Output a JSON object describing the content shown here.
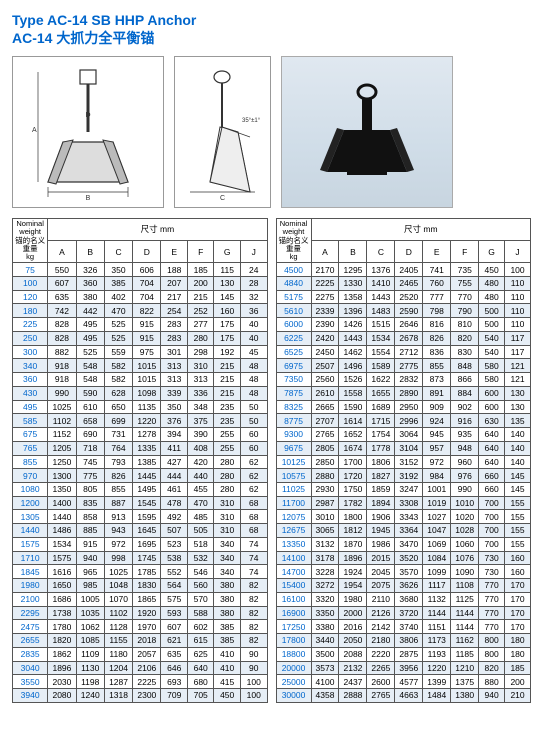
{
  "title_en": "Type AC-14 SB HHP Anchor",
  "title_cn": "AC-14 大抓力全平衡锚",
  "header": {
    "nominal_l1": "Nominal",
    "nominal_l2": "weight",
    "nominal_l3": "锚的名义重量",
    "nominal_l4": "kg",
    "dim_label": "尺寸 mm",
    "cols": [
      "A",
      "B",
      "C",
      "D",
      "E",
      "F",
      "G",
      "J"
    ]
  },
  "table_left_rows": [
    [
      "75",
      "550",
      "326",
      "350",
      "606",
      "188",
      "185",
      "115",
      "24"
    ],
    [
      "100",
      "607",
      "360",
      "385",
      "704",
      "207",
      "200",
      "130",
      "28"
    ],
    [
      "120",
      "635",
      "380",
      "402",
      "704",
      "217",
      "215",
      "145",
      "32"
    ],
    [
      "180",
      "742",
      "442",
      "470",
      "822",
      "254",
      "252",
      "160",
      "36"
    ],
    [
      "225",
      "828",
      "495",
      "525",
      "915",
      "283",
      "277",
      "175",
      "40"
    ],
    [
      "250",
      "828",
      "495",
      "525",
      "915",
      "283",
      "280",
      "175",
      "40"
    ],
    [
      "300",
      "882",
      "525",
      "559",
      "975",
      "301",
      "298",
      "192",
      "45"
    ],
    [
      "340",
      "918",
      "548",
      "582",
      "1015",
      "313",
      "310",
      "215",
      "48"
    ],
    [
      "360",
      "918",
      "548",
      "582",
      "1015",
      "313",
      "313",
      "215",
      "48"
    ],
    [
      "430",
      "990",
      "590",
      "628",
      "1098",
      "339",
      "336",
      "215",
      "48"
    ],
    [
      "495",
      "1025",
      "610",
      "650",
      "1135",
      "350",
      "348",
      "235",
      "50"
    ],
    [
      "585",
      "1102",
      "658",
      "699",
      "1220",
      "376",
      "375",
      "235",
      "50"
    ],
    [
      "675",
      "1152",
      "690",
      "731",
      "1278",
      "394",
      "390",
      "255",
      "60"
    ],
    [
      "765",
      "1205",
      "718",
      "764",
      "1335",
      "411",
      "408",
      "255",
      "60"
    ],
    [
      "855",
      "1250",
      "745",
      "793",
      "1385",
      "427",
      "420",
      "280",
      "62"
    ],
    [
      "970",
      "1300",
      "775",
      "826",
      "1445",
      "444",
      "440",
      "280",
      "62"
    ],
    [
      "1080",
      "1350",
      "805",
      "855",
      "1495",
      "461",
      "455",
      "280",
      "62"
    ],
    [
      "1200",
      "1400",
      "835",
      "887",
      "1545",
      "478",
      "470",
      "310",
      "68"
    ],
    [
      "1305",
      "1440",
      "858",
      "913",
      "1595",
      "492",
      "485",
      "310",
      "68"
    ],
    [
      "1440",
      "1486",
      "885",
      "943",
      "1645",
      "507",
      "505",
      "310",
      "68"
    ],
    [
      "1575",
      "1534",
      "915",
      "972",
      "1695",
      "523",
      "518",
      "340",
      "74"
    ],
    [
      "1710",
      "1575",
      "940",
      "998",
      "1745",
      "538",
      "532",
      "340",
      "74"
    ],
    [
      "1845",
      "1616",
      "965",
      "1025",
      "1785",
      "552",
      "546",
      "340",
      "74"
    ],
    [
      "1980",
      "1650",
      "985",
      "1048",
      "1830",
      "564",
      "560",
      "380",
      "82"
    ],
    [
      "2100",
      "1686",
      "1005",
      "1070",
      "1865",
      "575",
      "570",
      "380",
      "82"
    ],
    [
      "2295",
      "1738",
      "1035",
      "1102",
      "1920",
      "593",
      "588",
      "380",
      "82"
    ],
    [
      "2475",
      "1780",
      "1062",
      "1128",
      "1970",
      "607",
      "602",
      "385",
      "82"
    ],
    [
      "2655",
      "1820",
      "1085",
      "1155",
      "2018",
      "621",
      "615",
      "385",
      "82"
    ],
    [
      "2835",
      "1862",
      "1109",
      "1180",
      "2057",
      "635",
      "625",
      "410",
      "90"
    ],
    [
      "3040",
      "1896",
      "1130",
      "1204",
      "2106",
      "646",
      "640",
      "410",
      "90"
    ],
    [
      "3550",
      "2030",
      "1198",
      "1287",
      "2225",
      "693",
      "680",
      "415",
      "100"
    ],
    [
      "3940",
      "2080",
      "1240",
      "1318",
      "2300",
      "709",
      "705",
      "450",
      "100"
    ]
  ],
  "table_right_rows": [
    [
      "4500",
      "2170",
      "1295",
      "1376",
      "2405",
      "741",
      "735",
      "450",
      "100"
    ],
    [
      "4840",
      "2225",
      "1330",
      "1410",
      "2465",
      "760",
      "755",
      "480",
      "110"
    ],
    [
      "5175",
      "2275",
      "1358",
      "1443",
      "2520",
      "777",
      "770",
      "480",
      "110"
    ],
    [
      "5610",
      "2339",
      "1396",
      "1483",
      "2590",
      "798",
      "790",
      "500",
      "110"
    ],
    [
      "6000",
      "2390",
      "1426",
      "1515",
      "2646",
      "816",
      "810",
      "500",
      "110"
    ],
    [
      "6225",
      "2420",
      "1443",
      "1534",
      "2678",
      "826",
      "820",
      "540",
      "117"
    ],
    [
      "6525",
      "2450",
      "1462",
      "1554",
      "2712",
      "836",
      "830",
      "540",
      "117"
    ],
    [
      "6975",
      "2507",
      "1496",
      "1589",
      "2775",
      "855",
      "848",
      "580",
      "121"
    ],
    [
      "7350",
      "2560",
      "1526",
      "1622",
      "2832",
      "873",
      "866",
      "580",
      "121"
    ],
    [
      "7875",
      "2610",
      "1558",
      "1655",
      "2890",
      "891",
      "884",
      "600",
      "130"
    ],
    [
      "8325",
      "2665",
      "1590",
      "1689",
      "2950",
      "909",
      "902",
      "600",
      "130"
    ],
    [
      "8775",
      "2707",
      "1614",
      "1715",
      "2996",
      "924",
      "916",
      "630",
      "135"
    ],
    [
      "9300",
      "2765",
      "1652",
      "1754",
      "3064",
      "945",
      "935",
      "640",
      "140"
    ],
    [
      "9675",
      "2805",
      "1674",
      "1778",
      "3104",
      "957",
      "948",
      "640",
      "140"
    ],
    [
      "10125",
      "2850",
      "1700",
      "1806",
      "3152",
      "972",
      "960",
      "640",
      "140"
    ],
    [
      "10575",
      "2880",
      "1720",
      "1827",
      "3192",
      "984",
      "976",
      "660",
      "145"
    ],
    [
      "11025",
      "2930",
      "1750",
      "1859",
      "3247",
      "1001",
      "990",
      "660",
      "145"
    ],
    [
      "11700",
      "2987",
      "1782",
      "1894",
      "3308",
      "1019",
      "1010",
      "700",
      "155"
    ],
    [
      "12075",
      "3010",
      "1800",
      "1906",
      "3343",
      "1027",
      "1020",
      "700",
      "155"
    ],
    [
      "12675",
      "3065",
      "1812",
      "1945",
      "3364",
      "1047",
      "1028",
      "700",
      "155"
    ],
    [
      "13350",
      "3132",
      "1870",
      "1986",
      "3470",
      "1069",
      "1060",
      "700",
      "155"
    ],
    [
      "14100",
      "3178",
      "1896",
      "2015",
      "3520",
      "1084",
      "1076",
      "730",
      "160"
    ],
    [
      "14700",
      "3228",
      "1924",
      "2045",
      "3570",
      "1099",
      "1090",
      "730",
      "160"
    ],
    [
      "15400",
      "3272",
      "1954",
      "2075",
      "3626",
      "1117",
      "1108",
      "770",
      "170"
    ],
    [
      "16100",
      "3320",
      "1980",
      "2110",
      "3680",
      "1132",
      "1125",
      "770",
      "170"
    ],
    [
      "16900",
      "3350",
      "2000",
      "2126",
      "3720",
      "1144",
      "1144",
      "770",
      "170"
    ],
    [
      "17250",
      "3380",
      "2016",
      "2142",
      "3740",
      "1151",
      "1144",
      "770",
      "170"
    ],
    [
      "17800",
      "3440",
      "2050",
      "2180",
      "3806",
      "1173",
      "1162",
      "800",
      "180"
    ],
    [
      "18800",
      "3500",
      "2088",
      "2220",
      "2875",
      "1193",
      "1185",
      "800",
      "180"
    ],
    [
      "20000",
      "3573",
      "2132",
      "2265",
      "3956",
      "1220",
      "1210",
      "820",
      "185"
    ],
    [
      "25000",
      "4100",
      "2437",
      "2600",
      "4577",
      "1399",
      "1375",
      "880",
      "200"
    ],
    [
      "30000",
      "4358",
      "2888",
      "2765",
      "4663",
      "1484",
      "1380",
      "940",
      "210"
    ]
  ],
  "colors": {
    "header_blue": "#0066cc",
    "zebra_even": "#e6eef6",
    "zebra_odd": "#ffffff",
    "border": "#555555",
    "photo_bg_top": "#e0e8f0",
    "photo_bg_bot": "#c8d5e0"
  }
}
